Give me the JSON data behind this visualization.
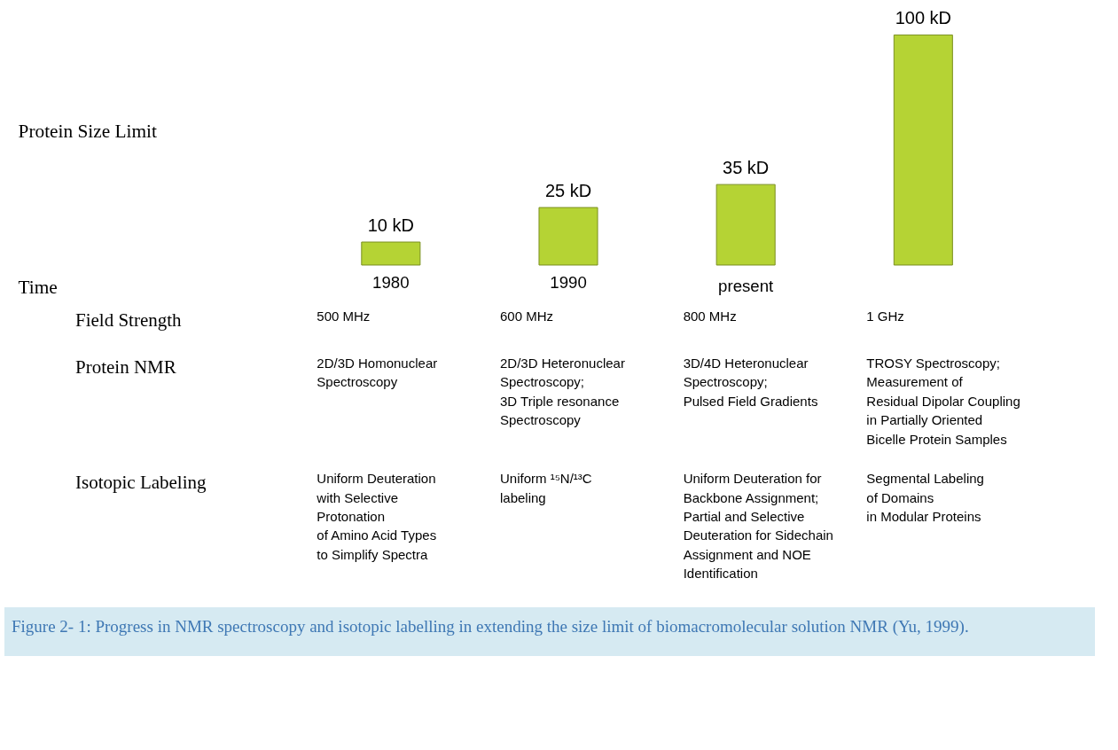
{
  "chart_data": {
    "type": "bar",
    "categories": [
      "1980",
      "1990",
      "present",
      null
    ],
    "values": [
      10,
      25,
      35,
      100
    ],
    "value_labels": [
      "10 kD",
      "25 kD",
      "35 kD",
      "100 kD"
    ],
    "color": "#b5d334",
    "annotations": [
      "Protein Size Limit",
      "Time",
      "Field Strength",
      "500 MHz",
      "600 MHz",
      "800 MHz",
      "1 GHz",
      "Protein NMR",
      "2D/3D Homonuclear\nSpectroscopy",
      "2D/3D Heteronuclear\nSpectroscopy;\n3D Triple resonance\nSpectroscopy",
      "3D/4D Heteronuclear\nSpectroscopy;\nPulsed Field Gradients",
      "TROSY Spectroscopy;\nMeasurement of\nResidual Dipolar Coupling\nin Partially Oriented\nBicelle Protein Samples",
      "Isotopic Labeling",
      "Uniform Deuteration\nwith Selective\nProtonation\nof Amino Acid Types\nto Simplify Spectra",
      "Uniform ¹⁵N/¹³C\nlabeling",
      "Uniform Deuteration for\nBackbone Assignment;\nPartial and Selective\nDeuteration for Sidechain\nAssignment and NOE\nIdentification",
      "Segmental Labeling\nof Domains\nin Modular Proteins",
      "Figure 2- 1: Progress in NMR spectroscopy and isotopic labelling in extending the size limit of biomacromolecular solution NMR (Yu, 1999)."
    ]
  }
}
